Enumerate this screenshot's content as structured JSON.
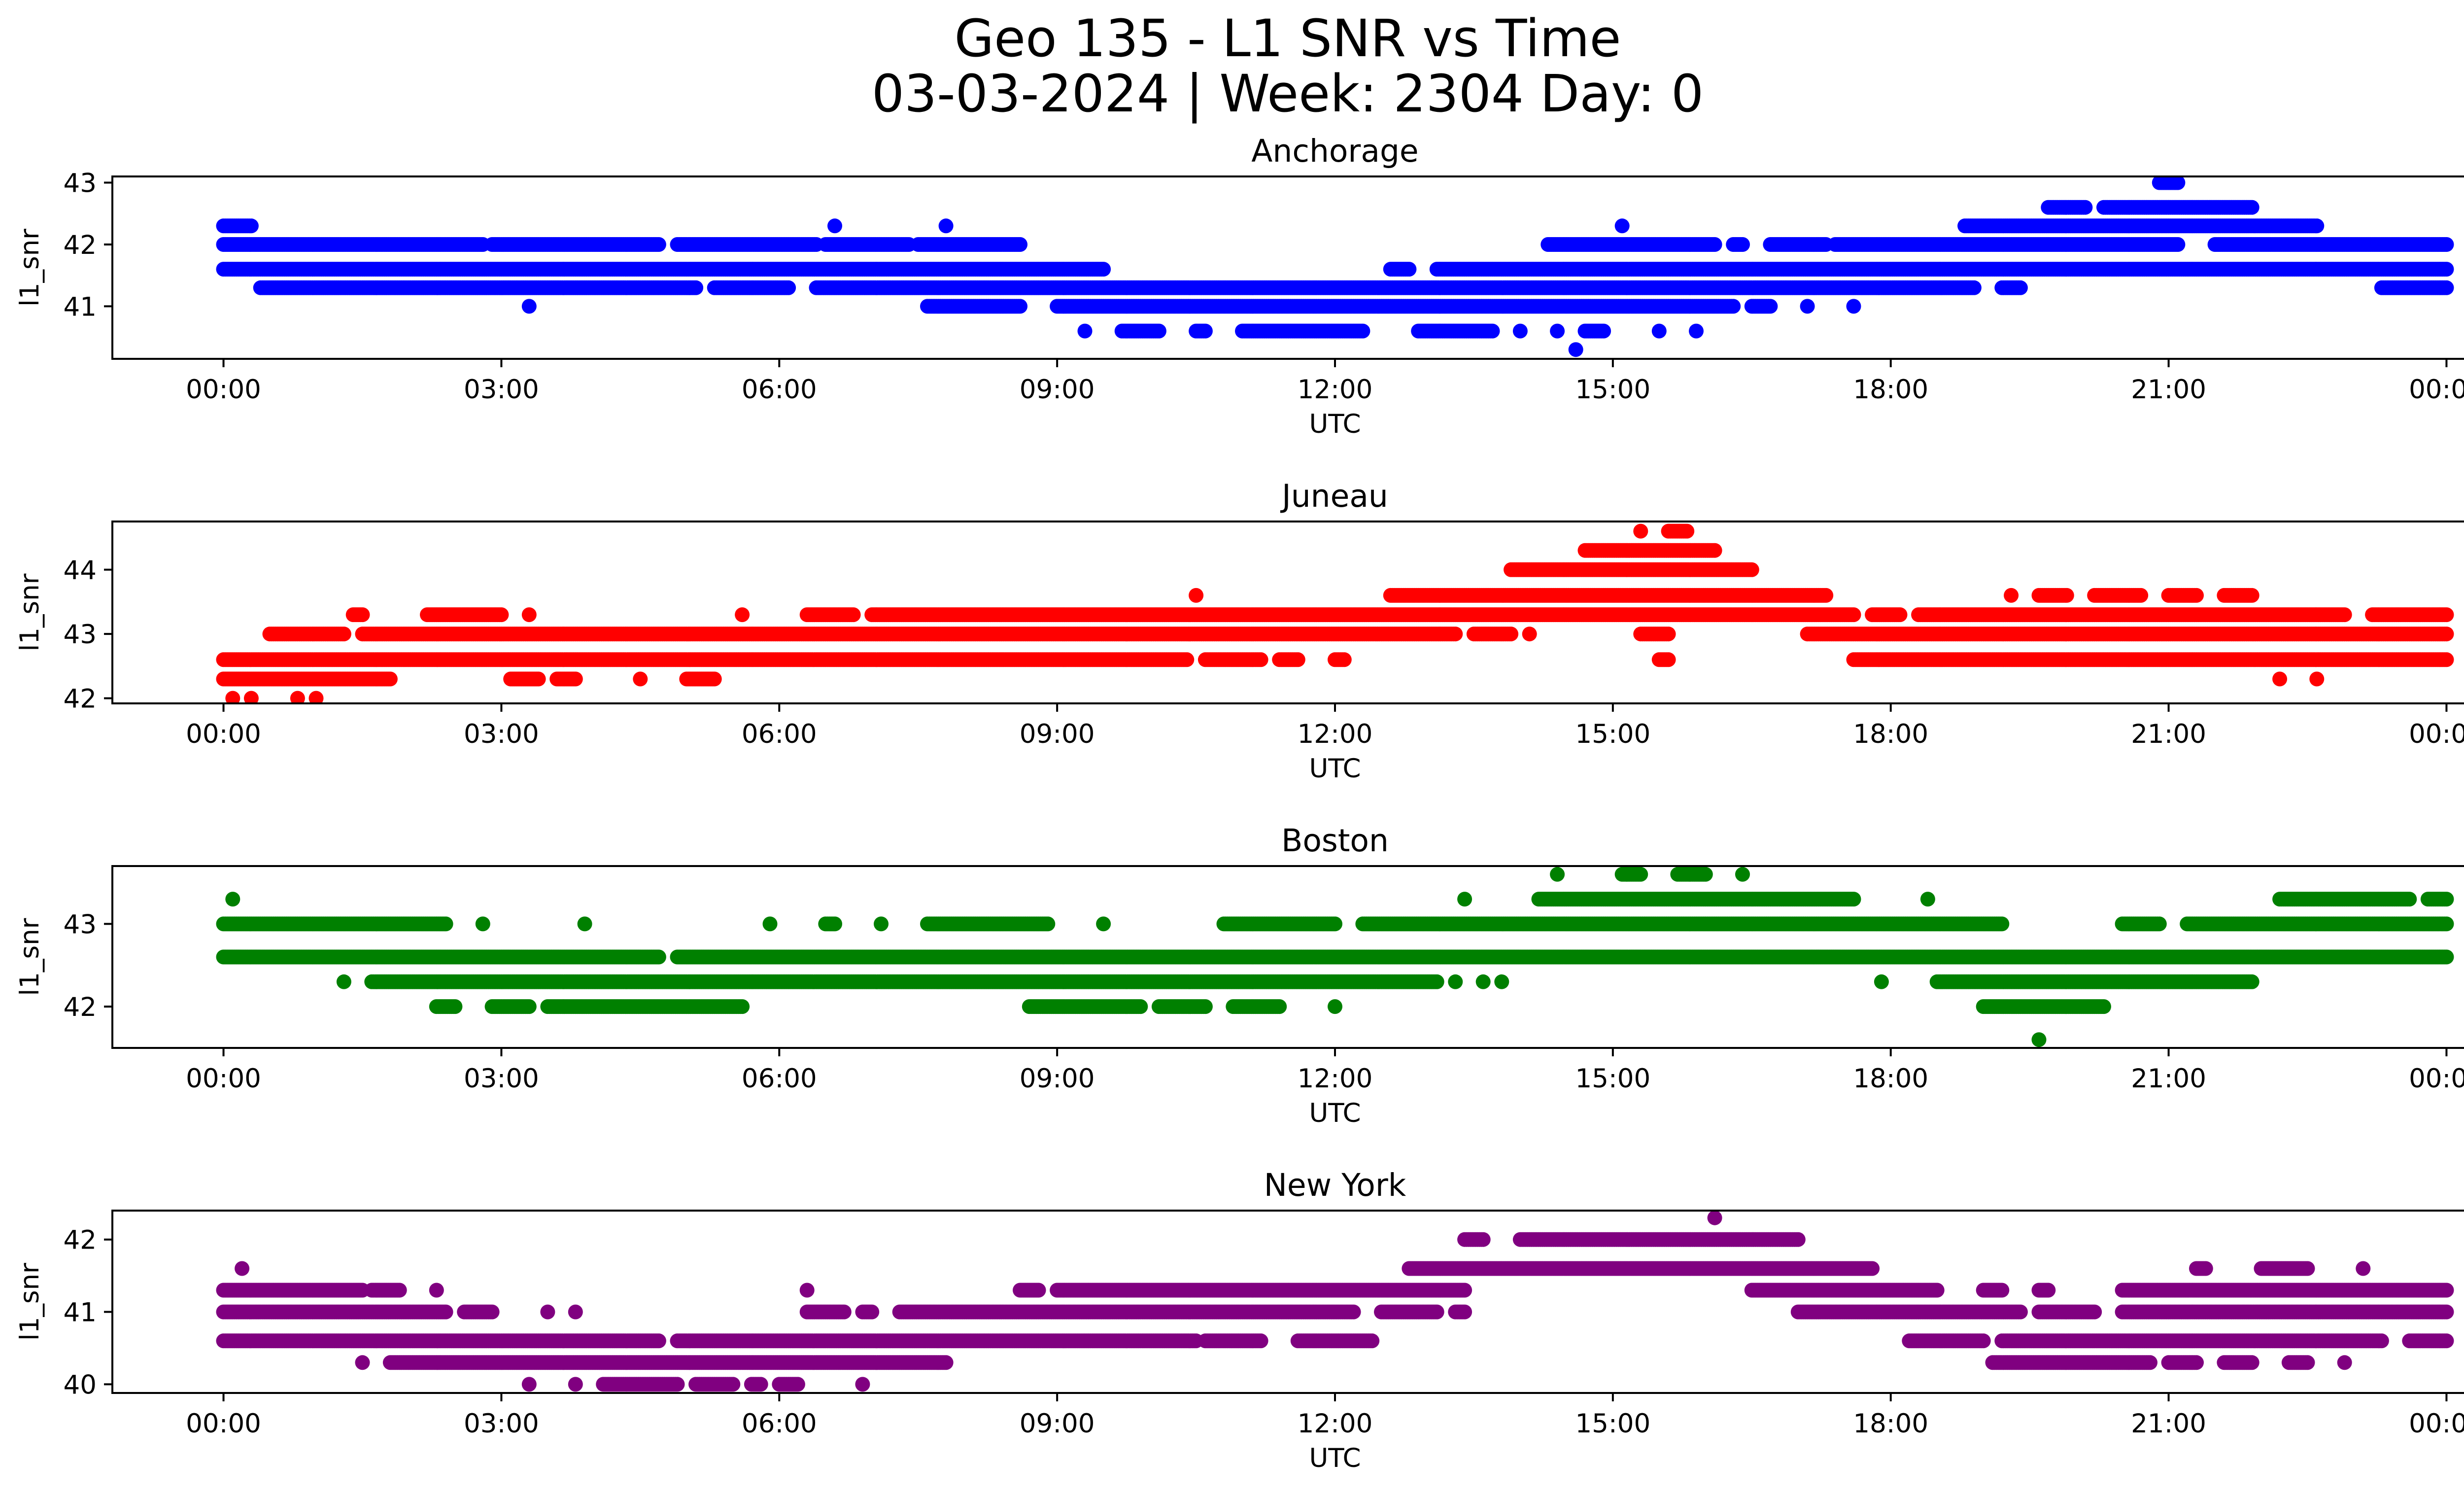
{
  "chart_data": {
    "type": "scatter",
    "suptitle_line1": "Geo 135 - L1 SNR vs Time",
    "suptitle_line2": "03-03-2024 | Week: 2304 Day: 0",
    "xlabel": "UTC",
    "ylabel": "l1_snr",
    "xticks": [
      "00:00",
      "03:00",
      "06:00",
      "09:00",
      "12:00",
      "15:00",
      "18:00",
      "21:00",
      "00:00"
    ],
    "xlim_hours": [
      -1.2,
      25.2
    ],
    "panels": [
      {
        "title": "Anchorage",
        "color": "#0000ff",
        "ylim": [
          40.15,
          43.1
        ],
        "yticks": [
          41,
          42,
          43
        ],
        "segments": [
          {
            "y": 42.0,
            "ranges": [
              [
                0,
                2.8
              ],
              [
                2.9,
                4.7
              ],
              [
                4.9,
                6.4
              ],
              [
                6.5,
                7.4
              ],
              [
                7.5,
                8.6
              ],
              [
                14.3,
                16.1
              ],
              [
                16.3,
                16.4
              ],
              [
                16.7,
                17.3
              ],
              [
                17.4,
                21.1
              ],
              [
                21.5,
                24.0
              ]
            ]
          },
          {
            "y": 41.6,
            "ranges": [
              [
                0,
                9.5
              ],
              [
                12.6,
                12.8
              ],
              [
                13.1,
                24.0
              ]
            ]
          },
          {
            "y": 41.3,
            "ranges": [
              [
                0.4,
                5.1
              ],
              [
                5.3,
                6.1
              ],
              [
                6.4,
                18.9
              ],
              [
                19.2,
                19.4
              ],
              [
                23.3,
                24.0
              ]
            ]
          },
          {
            "y": 41.0,
            "ranges": [
              [
                3.3,
                3.3
              ],
              [
                7.6,
                8.6
              ],
              [
                9.0,
                16.3
              ],
              [
                16.5,
                16.7
              ],
              [
                17.1,
                17.1
              ],
              [
                17.6,
                17.6
              ]
            ]
          },
          {
            "y": 42.3,
            "ranges": [
              [
                0,
                0.3
              ],
              [
                6.6,
                6.6
              ],
              [
                7.8,
                7.8
              ],
              [
                15.1,
                15.1
              ],
              [
                18.8,
                22.6
              ]
            ]
          },
          {
            "y": 40.6,
            "ranges": [
              [
                9.3,
                9.3
              ],
              [
                9.7,
                10.1
              ],
              [
                10.5,
                10.6
              ],
              [
                11.0,
                12.3
              ],
              [
                12.9,
                13.7
              ],
              [
                14.0,
                14.0
              ],
              [
                14.4,
                14.4
              ],
              [
                14.7,
                14.9
              ],
              [
                15.5,
                15.5
              ],
              [
                15.9,
                15.9
              ]
            ]
          },
          {
            "y": 42.6,
            "ranges": [
              [
                19.7,
                20.1
              ],
              [
                20.3,
                21.9
              ]
            ]
          },
          {
            "y": 43.0,
            "ranges": [
              [
                20.9,
                21.1
              ]
            ]
          },
          {
            "y": 40.3,
            "ranges": [
              [
                14.6,
                14.6
              ]
            ]
          }
        ]
      },
      {
        "title": "Juneau",
        "color": "#ff0000",
        "ylim": [
          41.92,
          44.75
        ],
        "yticks": [
          42,
          43,
          44
        ],
        "segments": [
          {
            "y": 42.6,
            "ranges": [
              [
                0,
                10.4
              ],
              [
                10.6,
                11.2
              ],
              [
                11.4,
                11.6
              ],
              [
                12.0,
                12.1
              ],
              [
                15.5,
                15.6
              ],
              [
                17.6,
                24.0
              ]
            ]
          },
          {
            "y": 42.3,
            "ranges": [
              [
                0,
                1.8
              ],
              [
                3.1,
                3.4
              ],
              [
                3.6,
                3.8
              ],
              [
                4.5,
                4.5
              ],
              [
                5.0,
                5.3
              ],
              [
                22.2,
                22.2
              ],
              [
                22.6,
                22.6
              ]
            ]
          },
          {
            "y": 43.0,
            "ranges": [
              [
                0.5,
                1.3
              ],
              [
                1.5,
                13.3
              ],
              [
                13.5,
                13.9
              ],
              [
                14.1,
                14.1
              ],
              [
                15.3,
                15.6
              ],
              [
                17.1,
                24.0
              ]
            ]
          },
          {
            "y": 43.3,
            "ranges": [
              [
                1.4,
                1.5
              ],
              [
                2.2,
                3.0
              ],
              [
                3.3,
                3.3
              ],
              [
                5.6,
                5.6
              ],
              [
                6.3,
                6.8
              ],
              [
                7.0,
                17.6
              ],
              [
                17.8,
                18.1
              ],
              [
                18.3,
                22.9
              ],
              [
                23.2,
                24.0
              ]
            ]
          },
          {
            "y": 42.0,
            "ranges": [
              [
                0.1,
                0.1
              ],
              [
                0.3,
                0.3
              ],
              [
                0.8,
                0.8
              ],
              [
                1.0,
                1.0
              ]
            ]
          },
          {
            "y": 43.6,
            "ranges": [
              [
                10.5,
                10.5
              ],
              [
                12.6,
                17.3
              ],
              [
                19.3,
                19.3
              ],
              [
                19.6,
                19.9
              ],
              [
                20.2,
                20.7
              ],
              [
                21.0,
                21.3
              ],
              [
                21.6,
                21.9
              ]
            ]
          },
          {
            "y": 44.0,
            "ranges": [
              [
                13.9,
                16.5
              ]
            ]
          },
          {
            "y": 44.3,
            "ranges": [
              [
                14.7,
                16.1
              ]
            ]
          },
          {
            "y": 44.6,
            "ranges": [
              [
                15.3,
                15.3
              ],
              [
                15.6,
                15.8
              ]
            ]
          }
        ]
      },
      {
        "title": "Boston",
        "color": "#008000",
        "ylim": [
          41.5,
          43.7
        ],
        "yticks": [
          42,
          43
        ],
        "segments": [
          {
            "y": 42.6,
            "ranges": [
              [
                0,
                4.7
              ],
              [
                4.9,
                24.0
              ]
            ]
          },
          {
            "y": 43.0,
            "ranges": [
              [
                0,
                2.4
              ],
              [
                2.8,
                2.8
              ],
              [
                3.9,
                3.9
              ],
              [
                5.9,
                5.9
              ],
              [
                6.5,
                6.6
              ],
              [
                7.1,
                7.1
              ],
              [
                7.6,
                8.9
              ],
              [
                9.5,
                9.5
              ],
              [
                10.8,
                12.0
              ],
              [
                12.3,
                19.2
              ],
              [
                20.5,
                20.9
              ],
              [
                21.2,
                24.0
              ]
            ]
          },
          {
            "y": 42.3,
            "ranges": [
              [
                1.3,
                1.3
              ],
              [
                1.6,
                13.1
              ],
              [
                13.3,
                13.3
              ],
              [
                13.6,
                13.6
              ],
              [
                13.8,
                13.8
              ],
              [
                17.9,
                17.9
              ],
              [
                18.5,
                21.9
              ]
            ]
          },
          {
            "y": 42.0,
            "ranges": [
              [
                2.3,
                2.5
              ],
              [
                2.9,
                3.3
              ],
              [
                3.5,
                5.6
              ],
              [
                8.7,
                9.9
              ],
              [
                10.1,
                10.6
              ],
              [
                10.9,
                11.4
              ],
              [
                12.0,
                12.0
              ],
              [
                19.0,
                20.3
              ]
            ]
          },
          {
            "y": 43.3,
            "ranges": [
              [
                0.1,
                0.1
              ],
              [
                13.4,
                13.4
              ],
              [
                14.2,
                17.6
              ],
              [
                18.4,
                18.4
              ],
              [
                22.2,
                23.6
              ],
              [
                23.8,
                24.0
              ]
            ]
          },
          {
            "y": 43.6,
            "ranges": [
              [
                14.4,
                14.4
              ],
              [
                15.1,
                15.3
              ],
              [
                15.7,
                16.0
              ],
              [
                16.4,
                16.4
              ]
            ]
          },
          {
            "y": 41.6,
            "ranges": [
              [
                19.6,
                19.6
              ]
            ]
          }
        ]
      },
      {
        "title": "New York",
        "color": "#800080",
        "ylim": [
          39.88,
          42.4
        ],
        "yticks": [
          40,
          41,
          42
        ],
        "segments": [
          {
            "y": 41.3,
            "ranges": [
              [
                0,
                1.5
              ],
              [
                1.6,
                1.9
              ],
              [
                2.3,
                2.3
              ],
              [
                6.3,
                6.3
              ],
              [
                8.6,
                8.8
              ],
              [
                9.0,
                13.4
              ],
              [
                16.5,
                18.5
              ],
              [
                19.0,
                19.2
              ],
              [
                19.6,
                19.7
              ],
              [
                20.5,
                24.0
              ]
            ]
          },
          {
            "y": 41.0,
            "ranges": [
              [
                0,
                2.4
              ],
              [
                2.6,
                2.9
              ],
              [
                3.5,
                3.5
              ],
              [
                3.8,
                3.8
              ],
              [
                6.3,
                6.7
              ],
              [
                6.9,
                7.0
              ],
              [
                7.3,
                12.2
              ],
              [
                12.5,
                13.1
              ],
              [
                13.3,
                13.4
              ],
              [
                17.0,
                19.4
              ],
              [
                19.6,
                20.2
              ],
              [
                20.5,
                24.0
              ]
            ]
          },
          {
            "y": 40.6,
            "ranges": [
              [
                0,
                4.7
              ],
              [
                4.9,
                10.5
              ],
              [
                10.6,
                11.2
              ],
              [
                11.6,
                12.4
              ],
              [
                18.2,
                19.0
              ],
              [
                19.2,
                23.3
              ],
              [
                23.6,
                24.0
              ]
            ]
          },
          {
            "y": 40.3,
            "ranges": [
              [
                1.5,
                1.5
              ],
              [
                1.8,
                7.8
              ],
              [
                19.1,
                20.8
              ],
              [
                21.0,
                21.3
              ],
              [
                21.6,
                21.9
              ],
              [
                22.3,
                22.5
              ],
              [
                22.9,
                22.9
              ]
            ]
          },
          {
            "y": 40.0,
            "ranges": [
              [
                3.3,
                3.3
              ],
              [
                3.8,
                3.8
              ],
              [
                4.1,
                4.9
              ],
              [
                5.1,
                5.5
              ],
              [
                5.7,
                5.8
              ],
              [
                6.0,
                6.2
              ],
              [
                6.9,
                6.9
              ]
            ]
          },
          {
            "y": 41.6,
            "ranges": [
              [
                0.2,
                0.2
              ],
              [
                12.8,
                17.8
              ],
              [
                21.3,
                21.4
              ],
              [
                22.0,
                22.5
              ],
              [
                23.1,
                23.1
              ]
            ]
          },
          {
            "y": 42.0,
            "ranges": [
              [
                13.4,
                13.6
              ],
              [
                14.0,
                17.0
              ]
            ]
          },
          {
            "y": 42.3,
            "ranges": [
              [
                16.1,
                16.1
              ]
            ]
          }
        ]
      }
    ]
  }
}
